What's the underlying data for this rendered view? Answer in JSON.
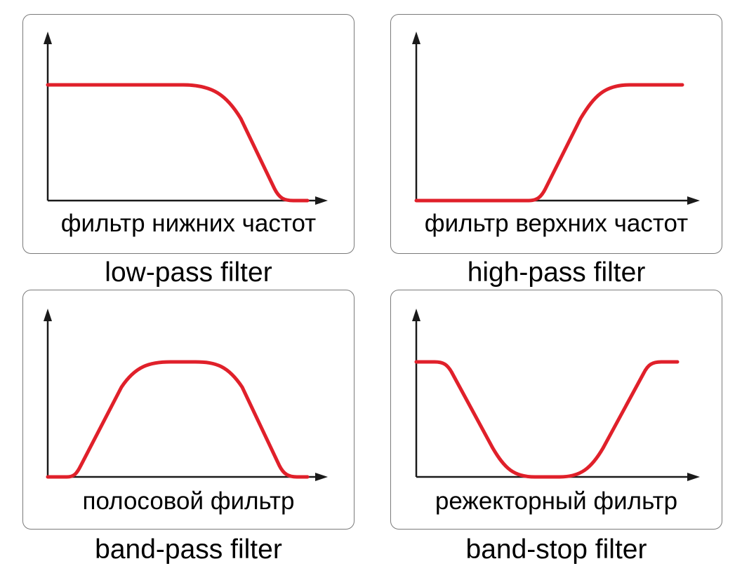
{
  "colors": {
    "curve": "#e0202a",
    "axis": "#1a1a1a",
    "border": "#7a7a7a"
  },
  "panels": [
    {
      "id": "low-pass",
      "inner_label": "фильтр нижних частот",
      "caption": "low-pass filter",
      "response": "low-pass"
    },
    {
      "id": "high-pass",
      "inner_label": "фильтр верхних частот",
      "caption": "high-pass filter",
      "response": "high-pass"
    },
    {
      "id": "band-pass",
      "inner_label": "полосовой фильтр",
      "caption": "band-pass filter",
      "response": "band-pass"
    },
    {
      "id": "band-stop",
      "inner_label": "режекторный фильтр",
      "caption": "band-stop filter",
      "response": "band-stop"
    }
  ]
}
